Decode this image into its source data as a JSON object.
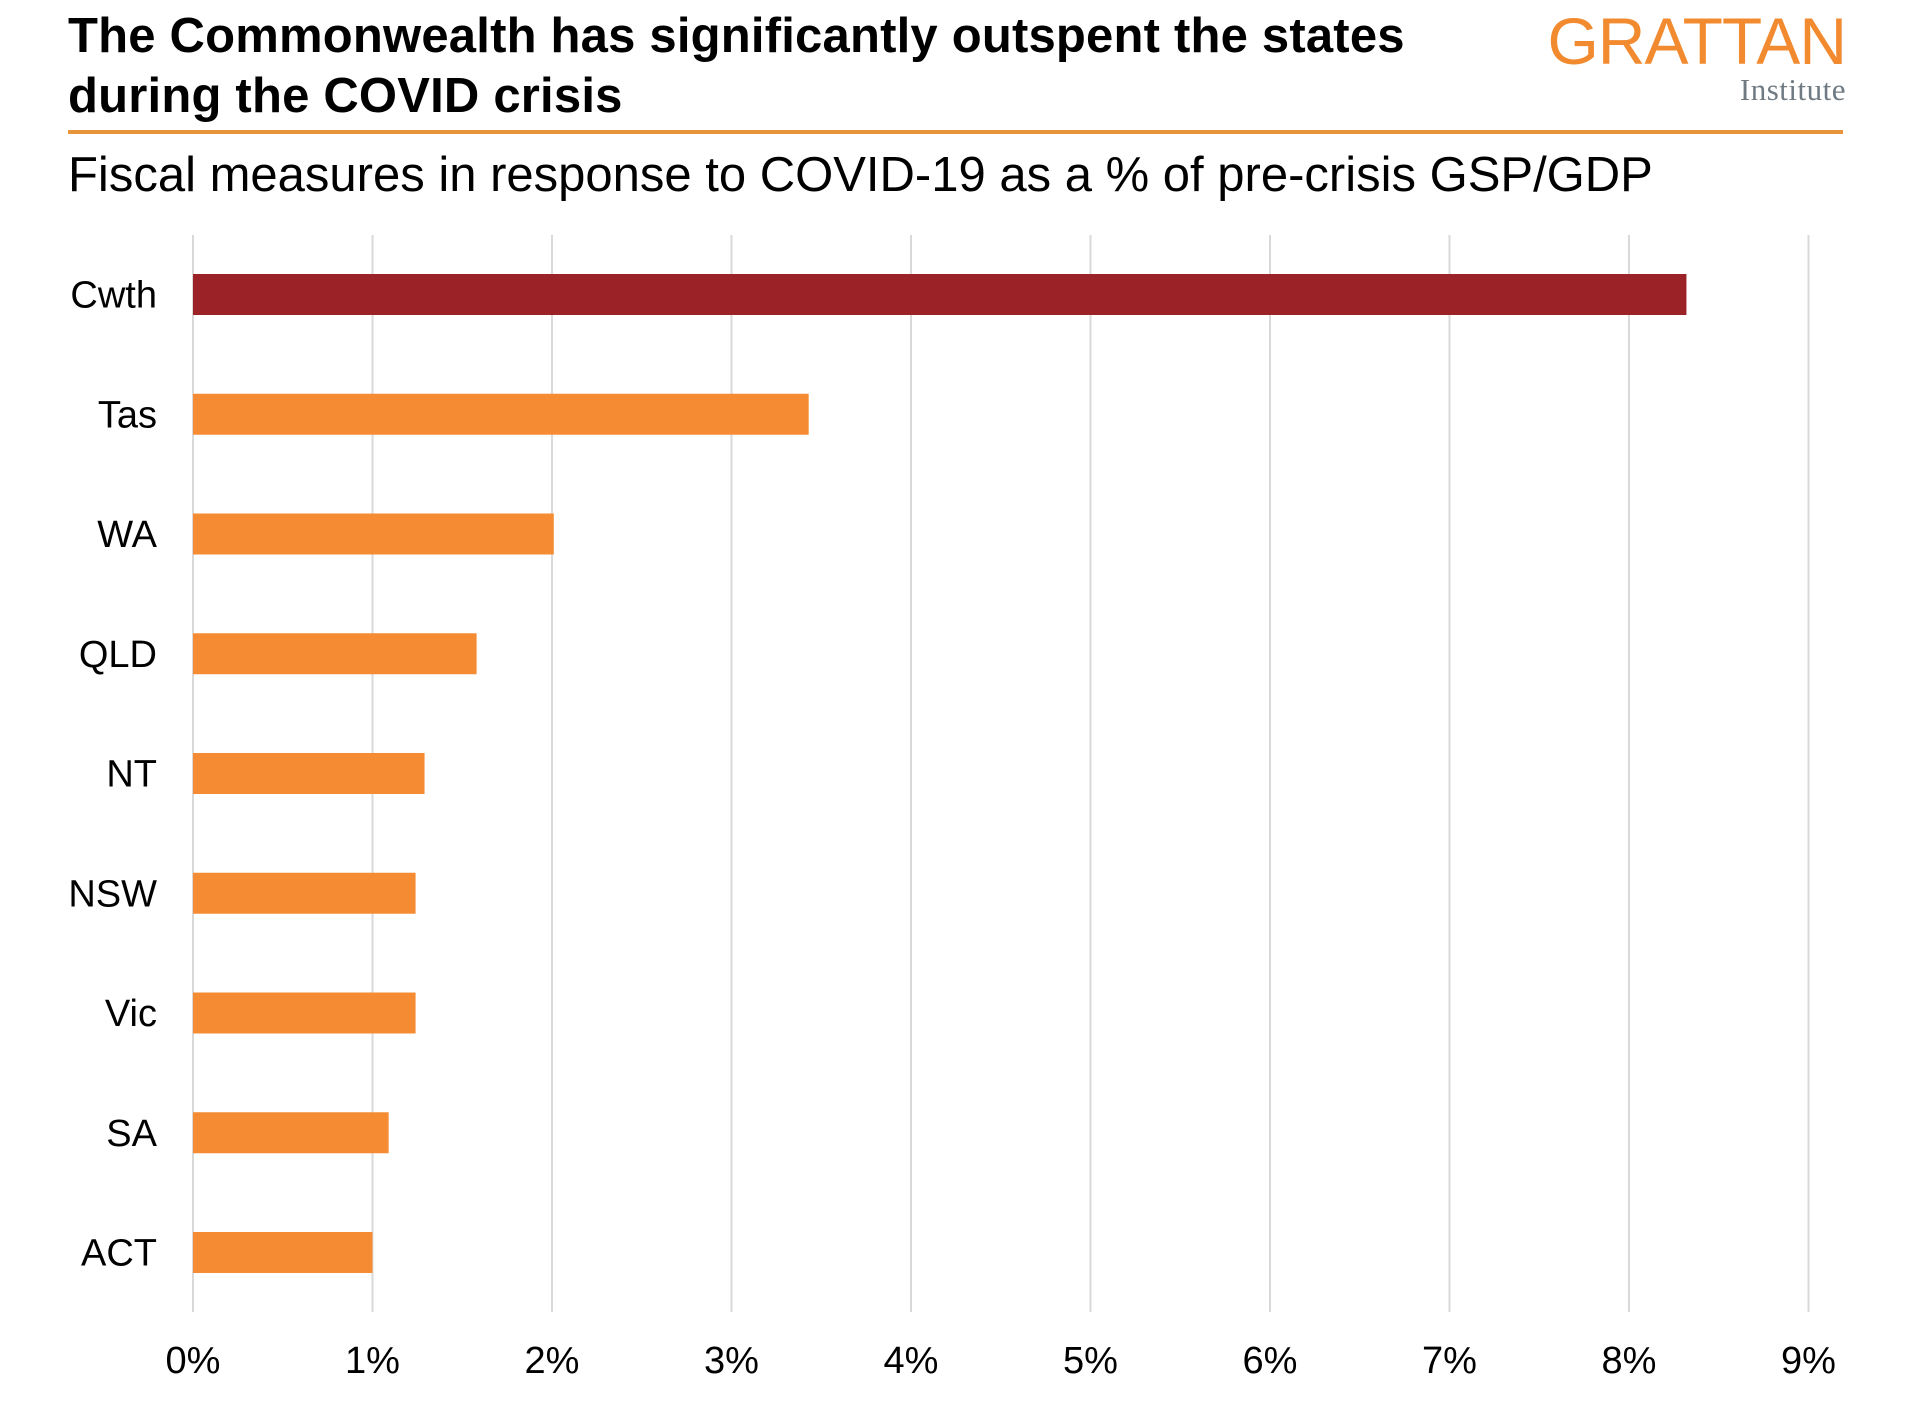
{
  "header": {
    "title": "The Commonwealth has significantly outspent the states during the COVID crisis",
    "subtitle": "Fiscal measures in response to COVID-19 as a % of pre-crisis GSP/GDP"
  },
  "logo": {
    "name": "GRATTAN",
    "tagline": "Institute",
    "brand_color": "#f28b30",
    "tagline_color": "#6f7a82"
  },
  "chart_data": {
    "type": "bar",
    "orientation": "horizontal",
    "title": "The Commonwealth has significantly outspent the states during the COVID crisis",
    "subtitle": "Fiscal measures in response to COVID-19 as a % of pre-crisis GSP/GDP",
    "xlabel": "",
    "ylabel": "",
    "categories": [
      "Cwth",
      "Tas",
      "WA",
      "QLD",
      "NT",
      "NSW",
      "Vic",
      "SA",
      "ACT"
    ],
    "values": [
      8.32,
      3.43,
      2.01,
      1.58,
      1.29,
      1.24,
      1.24,
      1.09,
      1.0
    ],
    "bar_colors": [
      "#9b2226",
      "#f58c33",
      "#f58c33",
      "#f58c33",
      "#f58c33",
      "#f58c33",
      "#f58c33",
      "#f58c33",
      "#f58c33"
    ],
    "xlim": [
      0,
      9
    ],
    "xticks": [
      0,
      1,
      2,
      3,
      4,
      5,
      6,
      7,
      8,
      9
    ],
    "xtick_labels": [
      "0%",
      "1%",
      "2%",
      "3%",
      "4%",
      "5%",
      "6%",
      "7%",
      "8%",
      "9%"
    ],
    "grid": "vertical",
    "legend": "none",
    "units": "% of pre-crisis GSP/GDP"
  }
}
